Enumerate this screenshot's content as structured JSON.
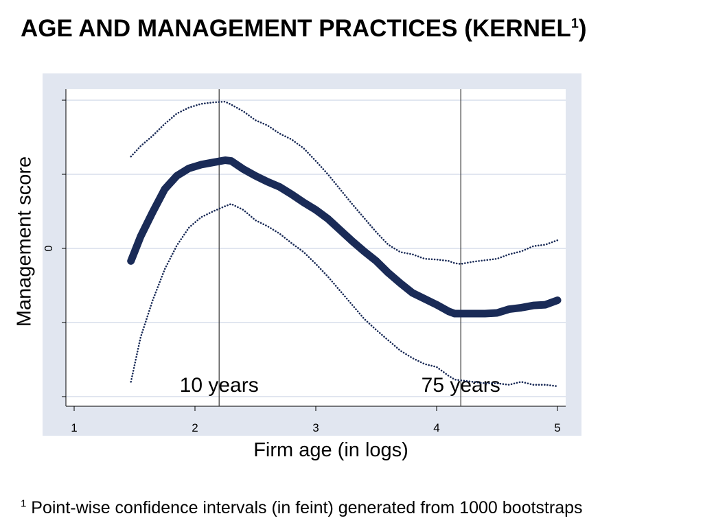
{
  "slide": {
    "title": "AGE AND MANAGEMENT PRACTICES (KERNEL",
    "title_sup": "1",
    "title_close": ")",
    "footnote_marker": "1",
    "footnote_text": " Point-wise confidence intervals (in feint) generated from 1000 bootstraps"
  },
  "colors": {
    "panel_bg": "#e1e6f0",
    "plot_bg": "#ffffff",
    "gridline": "#e1e6f0",
    "series": "#1a2b57"
  },
  "chart_data": {
    "type": "line",
    "title": "AGE AND MANAGEMENT PRACTICES (KERNEL1)",
    "xlabel": "Firm age (in logs)",
    "ylabel": "Management score",
    "xlim": [
      1,
      5
    ],
    "x_ticks": [
      1,
      2,
      3,
      4,
      5
    ],
    "y_ticks": [
      -2,
      -1,
      0,
      1,
      2
    ],
    "y_tick_labels": [
      "",
      "",
      "0",
      "",
      ""
    ],
    "ylim": [
      -2.15,
      2.15
    ],
    "grid": true,
    "vlines": [
      {
        "x": 2.2,
        "label": "10 years"
      },
      {
        "x": 4.2,
        "label": "75 years"
      }
    ],
    "series": [
      {
        "role": "estimate",
        "x": [
          1.47,
          1.55,
          1.65,
          1.75,
          1.85,
          1.95,
          2.05,
          2.15,
          2.25,
          2.3,
          2.4,
          2.5,
          2.6,
          2.7,
          2.8,
          2.9,
          3.0,
          3.1,
          3.2,
          3.3,
          3.4,
          3.5,
          3.6,
          3.7,
          3.8,
          3.9,
          4.0,
          4.1,
          4.15,
          4.2,
          4.3,
          4.4,
          4.5,
          4.6,
          4.7,
          4.8,
          4.9,
          5.0
        ],
        "y": [
          -0.17,
          0.16,
          0.49,
          0.8,
          0.98,
          1.08,
          1.13,
          1.16,
          1.19,
          1.18,
          1.07,
          0.98,
          0.9,
          0.83,
          0.73,
          0.62,
          0.52,
          0.4,
          0.25,
          0.1,
          -0.04,
          -0.17,
          -0.33,
          -0.47,
          -0.6,
          -0.68,
          -0.76,
          -0.85,
          -0.88,
          -0.88,
          -0.88,
          -0.88,
          -0.87,
          -0.82,
          -0.8,
          -0.77,
          -0.76,
          -0.7
        ]
      },
      {
        "role": "upper-ci",
        "x": [
          1.47,
          1.55,
          1.65,
          1.75,
          1.85,
          1.95,
          2.05,
          2.15,
          2.25,
          2.3,
          2.4,
          2.5,
          2.6,
          2.7,
          2.8,
          2.9,
          3.0,
          3.1,
          3.2,
          3.3,
          3.4,
          3.5,
          3.6,
          3.7,
          3.8,
          3.9,
          4.0,
          4.1,
          4.15,
          4.2,
          4.3,
          4.4,
          4.5,
          4.6,
          4.7,
          4.8,
          4.9,
          5.0
        ],
        "y": [
          1.24,
          1.38,
          1.52,
          1.68,
          1.82,
          1.9,
          1.95,
          1.97,
          1.98,
          1.94,
          1.85,
          1.73,
          1.66,
          1.55,
          1.47,
          1.35,
          1.18,
          1.0,
          0.8,
          0.6,
          0.41,
          0.22,
          0.05,
          -0.05,
          -0.08,
          -0.14,
          -0.15,
          -0.17,
          -0.2,
          -0.21,
          -0.18,
          -0.16,
          -0.14,
          -0.08,
          -0.04,
          0.03,
          0.05,
          0.11
        ]
      },
      {
        "role": "lower-ci",
        "x": [
          1.47,
          1.55,
          1.65,
          1.75,
          1.85,
          1.95,
          2.05,
          2.15,
          2.25,
          2.3,
          2.4,
          2.5,
          2.6,
          2.7,
          2.8,
          2.9,
          3.0,
          3.1,
          3.2,
          3.3,
          3.4,
          3.5,
          3.6,
          3.7,
          3.8,
          3.9,
          4.0,
          4.1,
          4.15,
          4.2,
          4.3,
          4.4,
          4.5,
          4.6,
          4.7,
          4.8,
          4.9,
          5.0
        ],
        "y": [
          -1.8,
          -1.2,
          -0.7,
          -0.28,
          0.04,
          0.28,
          0.42,
          0.5,
          0.57,
          0.6,
          0.52,
          0.38,
          0.3,
          0.2,
          0.07,
          -0.05,
          -0.21,
          -0.38,
          -0.57,
          -0.76,
          -0.95,
          -1.1,
          -1.24,
          -1.38,
          -1.48,
          -1.56,
          -1.6,
          -1.72,
          -1.77,
          -1.78,
          -1.8,
          -1.82,
          -1.82,
          -1.84,
          -1.8,
          -1.84,
          -1.84,
          -1.86
        ]
      }
    ]
  }
}
